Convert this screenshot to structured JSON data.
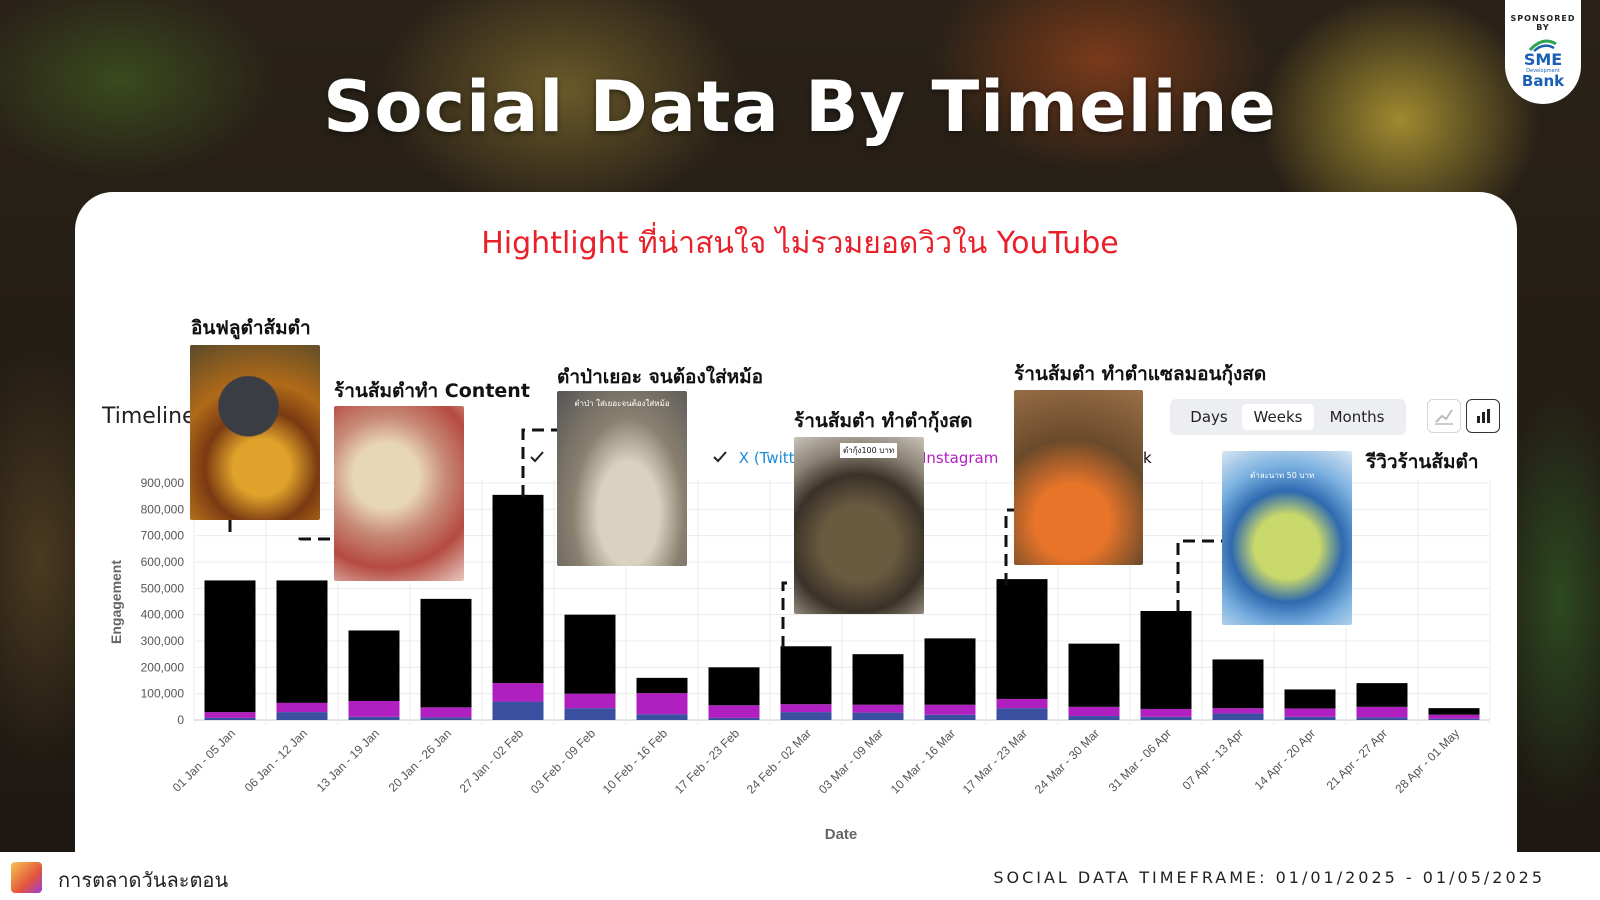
{
  "page": {
    "title": "Social Data By Timeline",
    "subtitle": "Hightlight ที่น่าสนใจ ไม่รวมยอดวิวใน YouTube",
    "sponsor_label": "SPONSORED BY",
    "sponsor_logo": {
      "line1": "SME",
      "line2": "Development",
      "line3": "Bank"
    },
    "footer_brand": "การตลาดวันละตอน",
    "footer_timeframe": "SOCIAL DATA TIMEFRAME: 01/01/2025 - 01/05/2025"
  },
  "controls": {
    "section_label": "Timeline",
    "granularity": [
      "Days",
      "Weeks",
      "Months"
    ],
    "selected_granularity": "Weeks",
    "chart_type_buttons": [
      "line-chart-icon",
      "bar-chart-icon"
    ]
  },
  "legend_visible": [
    {
      "label": "X (Twitt",
      "color": "#1d8bd6",
      "checked": true
    },
    {
      "label": "Instagram",
      "color": "#b01fc0",
      "checked": true
    },
    {
      "label": "k",
      "color": "#111111",
      "checked": true
    }
  ],
  "highlights": [
    {
      "label": "อินฟลูตำส้มตำ",
      "week": "01 Jan - 05 Jan"
    },
    {
      "label": "ร้านส้มตำทำ Content",
      "week": "06 Jan - 12 Jan"
    },
    {
      "label": "ตำป่าเยอะ จนต้องใส่หม้อ",
      "week": "27 Jan - 02 Feb",
      "image_text": "ตำป่า ใส่เยอะจนต้องใส่หม้อ"
    },
    {
      "label": "ร้านส้มตำ ทำตำกุ้งสด",
      "week": "24 Feb - 02 Mar",
      "image_text": "ตำกุ้ง100 บาท"
    },
    {
      "label": "ร้านส้มตำ ทำตำแซลมอนกุ้งสด",
      "week": "17 Mar - 23 Mar"
    },
    {
      "label": "รีวิวร้านส้มตำ",
      "week": "31 Mar - 06 Apr",
      "image_text": "ตำละนาท 50 บาท"
    }
  ],
  "chart_data": {
    "type": "bar",
    "stacked": true,
    "xlabel": "Date",
    "ylabel": "Engagement",
    "ylim": [
      0,
      900000
    ],
    "yticks": [
      "0",
      "100,000",
      "200,000",
      "300,000",
      "400,000",
      "500,000",
      "600,000",
      "700,000",
      "800,000",
      "900,000"
    ],
    "grid": true,
    "categories": [
      "01 Jan - 05 Jan",
      "06 Jan - 12 Jan",
      "13 Jan - 19 Jan",
      "20 Jan - 26 Jan",
      "27 Jan - 02 Feb",
      "03 Feb - 09 Feb",
      "10 Feb - 16 Feb",
      "17 Feb - 23 Feb",
      "24 Feb - 02 Mar",
      "03 Mar - 09 Mar",
      "10 Mar - 16 Mar",
      "17 Mar - 23 Mar",
      "24 Mar - 30 Mar",
      "31 Mar - 06 Apr",
      "07 Apr - 13 Apr",
      "14 Apr - 20 Apr",
      "21 Apr - 27 Apr",
      "28 Apr - 01 May"
    ],
    "series": [
      {
        "name": "X (Twitter)",
        "color": "#3a4fa0",
        "values": [
          8000,
          30000,
          12000,
          10000,
          70000,
          45000,
          22000,
          8000,
          30000,
          28000,
          20000,
          45000,
          15000,
          12000,
          25000,
          12000,
          10000,
          5000
        ]
      },
      {
        "name": "Instagram",
        "color": "#b01fc0",
        "values": [
          22000,
          35000,
          60000,
          38000,
          70000,
          55000,
          80000,
          48000,
          30000,
          30000,
          38000,
          35000,
          35000,
          30000,
          20000,
          32000,
          40000,
          15000
        ]
      },
      {
        "name": "",
        "color": "#000000",
        "values": [
          500000,
          465000,
          268000,
          412000,
          715000,
          300000,
          58000,
          144000,
          220000,
          192000,
          252000,
          455000,
          240000,
          372000,
          185000,
          72000,
          90000,
          25000
        ]
      }
    ]
  }
}
